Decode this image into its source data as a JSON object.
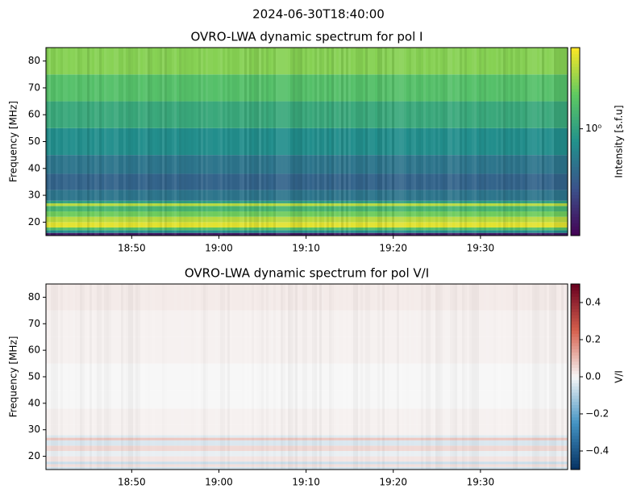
{
  "title": "2024-06-30T18:40:00",
  "chart_data": [
    {
      "type": "heatmap",
      "title": "OVRO-LWA dynamic spectrum for pol I",
      "ylabel": "Frequency [MHz]",
      "xlim": [
        "18:40:10",
        "19:40:00"
      ],
      "xticks": [
        "18:50",
        "19:00",
        "19:10",
        "19:20",
        "19:30"
      ],
      "ylim": [
        15,
        85
      ],
      "yticks": [
        20,
        30,
        40,
        50,
        60,
        70,
        80
      ],
      "y_bins": [
        15,
        16,
        17,
        18,
        20,
        22,
        24,
        26,
        27,
        28,
        32,
        38,
        45,
        55,
        65,
        75,
        85
      ],
      "values": [
        0.25,
        0.8,
        1.5,
        3.0,
        2.5,
        1.8,
        1.3,
        2.5,
        1.0,
        0.6,
        0.5,
        0.6,
        0.8,
        1.1,
        1.5,
        2.0
      ],
      "cmap": "viridis",
      "zscale": "log",
      "zlabel": "Intensity [s.f.u]",
      "zlim": [
        0.2,
        3.4
      ],
      "zticks": [
        {
          "value": 1,
          "label": "10⁰"
        }
      ]
    },
    {
      "type": "heatmap",
      "title": "OVRO-LWA dynamic spectrum for pol V/I",
      "ylabel": "Frequency [MHz]",
      "xlim": [
        "18:40:10",
        "19:40:00"
      ],
      "xticks": [
        "18:50",
        "19:00",
        "19:10",
        "19:20",
        "19:30"
      ],
      "ylim": [
        15,
        85
      ],
      "yticks": [
        20,
        30,
        40,
        50,
        60,
        70,
        80
      ],
      "y_bins": [
        15,
        16,
        17,
        18,
        20,
        22,
        24,
        26,
        27,
        28,
        32,
        38,
        45,
        55,
        65,
        75,
        85
      ],
      "values": [
        -0.05,
        0.04,
        -0.06,
        0.03,
        -0.02,
        0.05,
        -0.04,
        0.08,
        -0.03,
        0.01,
        0.01,
        0.0,
        0.0,
        0.01,
        0.01,
        0.02
      ],
      "cmap": "RdBu_r",
      "zscale": "linear",
      "zlabel": "V/I",
      "zlim": [
        -0.5,
        0.5
      ],
      "zticks": [
        {
          "value": -0.4,
          "label": "−0.4"
        },
        {
          "value": -0.2,
          "label": "−0.2"
        },
        {
          "value": 0,
          "label": "0.0"
        },
        0.2,
        0.4
      ]
    }
  ]
}
